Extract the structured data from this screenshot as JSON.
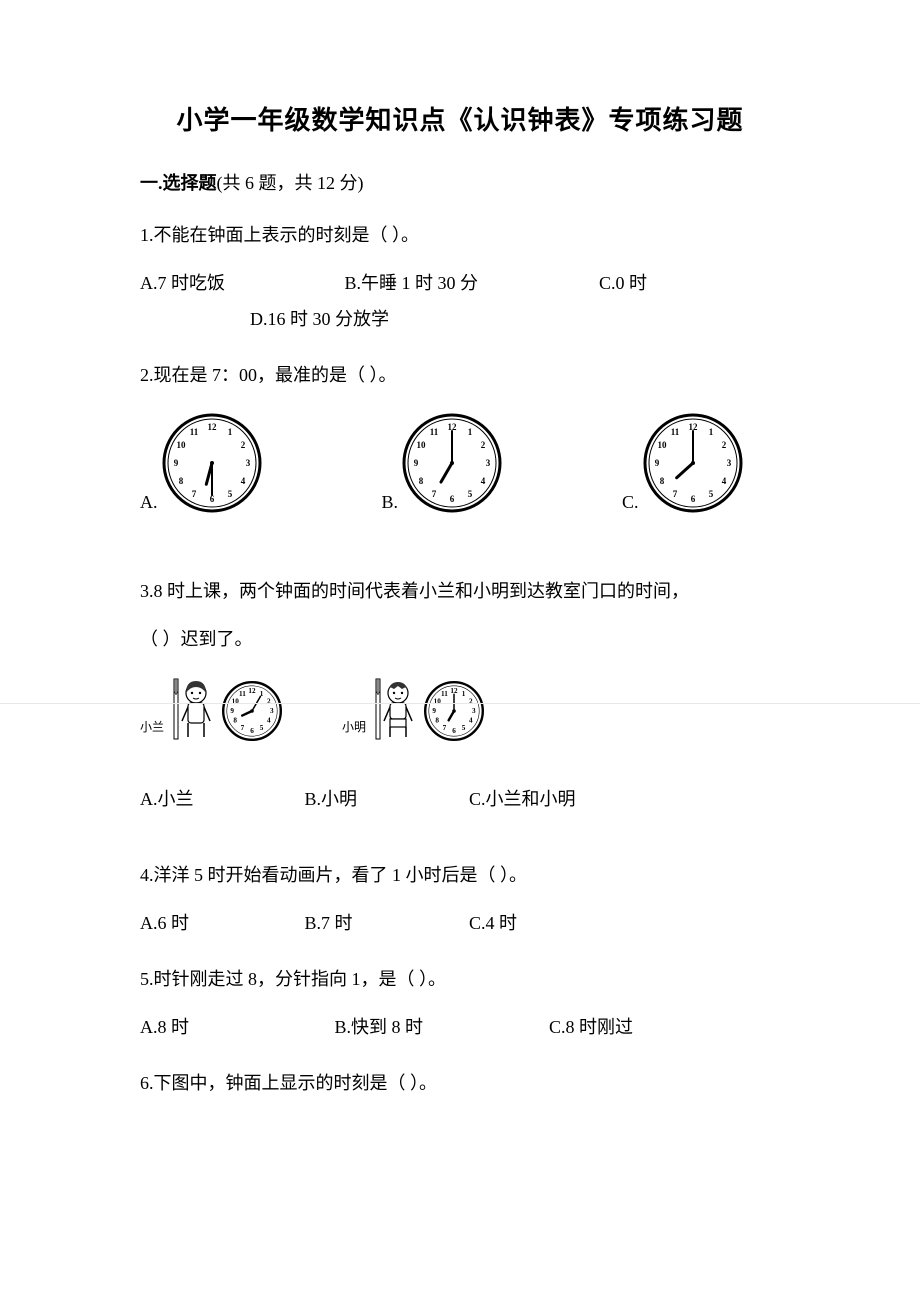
{
  "title": "小学一年级数学知识点《认识钟表》专项练习题",
  "section1": {
    "header_prefix": "一.选择题",
    "header_rest": "(共 6 题，共 12 分)"
  },
  "q1": {
    "text": "1.不能在钟面上表示的时刻是（    ）。",
    "optA": "A.7 时吃饭",
    "optB": "B.午睡 1 时 30 分",
    "optC": "C.0 时",
    "optD": "D.16 时 30 分放学"
  },
  "q2": {
    "text": "2.现在是 7：00，最准的是（     ）。",
    "optA": "A.",
    "optB": "B.",
    "optC": "C.",
    "clockA": {
      "hourAngle": 195,
      "minuteAngle": 180
    },
    "clockB": {
      "hourAngle": 210,
      "minuteAngle": 0
    },
    "clockC": {
      "hourAngle": 228,
      "minuteAngle": 0
    }
  },
  "q3": {
    "text": "3.8 时上课，两个钟面的时间代表着小兰和小明到达教室门口的时间，",
    "text2": "（     ）迟到了。",
    "kidA": "小兰",
    "kidB": "小明",
    "clockA": {
      "hourAngle": 245,
      "minuteAngle": 30
    },
    "clockB": {
      "hourAngle": 210,
      "minuteAngle": 0
    },
    "optA": "A.小兰",
    "optB": "B.小明",
    "optC": "C.小兰和小明"
  },
  "q4": {
    "text": "4.洋洋 5 时开始看动画片，看了 1 小时后是（    ）。",
    "optA": "A.6 时",
    "optB": "B.7 时",
    "optC": "C.4 时"
  },
  "q5": {
    "text": "5.时针刚走过 8，分针指向 1，是（    ）。",
    "optA": "A.8 时",
    "optB": "B.快到 8 时",
    "optC": "C.8 时刚过"
  },
  "q6": {
    "text": "6.下图中，钟面上显示的时刻是（     ）。"
  }
}
